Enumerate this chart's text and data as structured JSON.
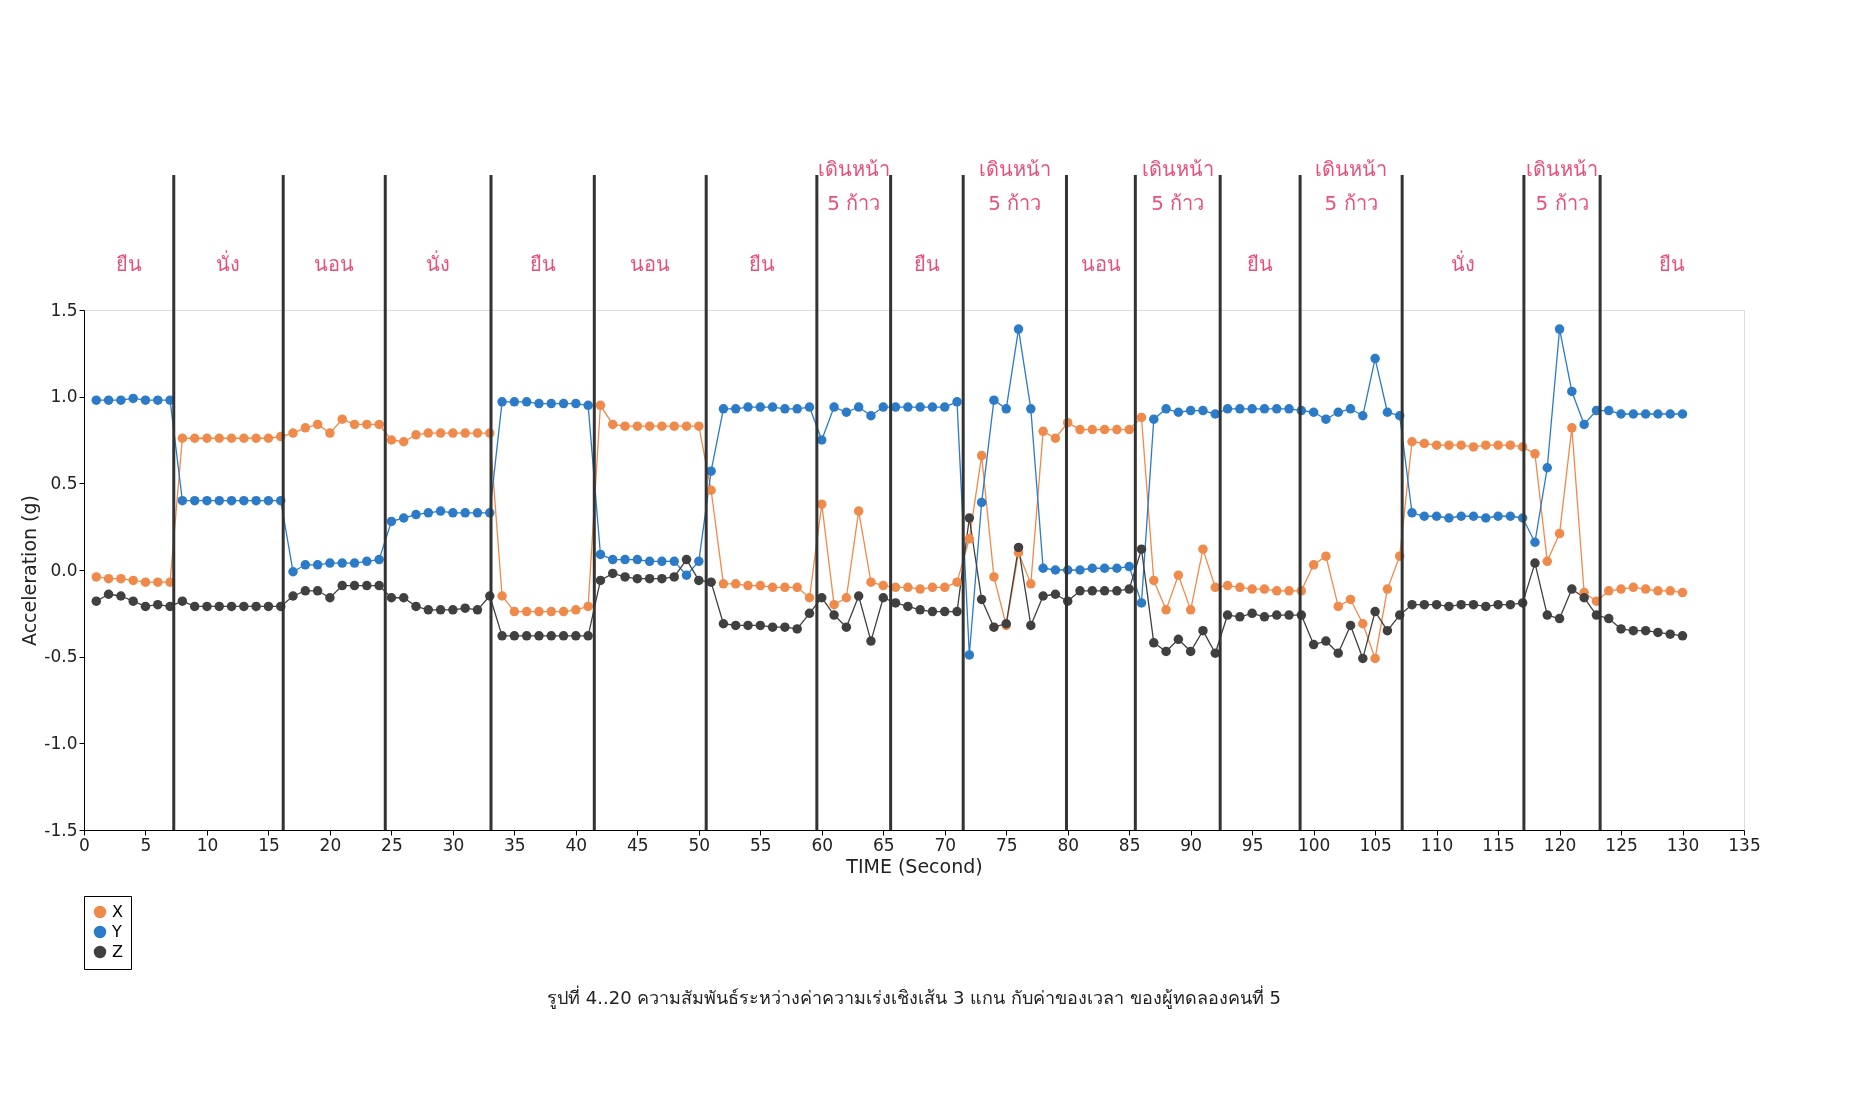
{
  "chart_data": {
    "type": "line",
    "title": "รูปที่ 4..20 ความสัมพันธ์ระหว่างค่าความเร่งเชิงเส้น 3 แกน กับค่าของเวลา ของผู้ทดลองคนที่ 5",
    "xlabel": "TIME (Second)",
    "ylabel": "Acceleration (g)",
    "x": [
      1,
      2,
      3,
      4,
      5,
      6,
      7,
      8,
      9,
      10,
      11,
      12,
      13,
      14,
      15,
      16,
      17,
      18,
      19,
      20,
      21,
      22,
      23,
      24,
      25,
      26,
      27,
      28,
      29,
      30,
      31,
      32,
      33,
      34,
      35,
      36,
      37,
      38,
      39,
      40,
      41,
      42,
      43,
      44,
      45,
      46,
      47,
      48,
      49,
      50,
      51,
      52,
      53,
      54,
      55,
      56,
      57,
      58,
      59,
      60,
      61,
      62,
      63,
      64,
      65,
      66,
      67,
      68,
      69,
      70,
      71,
      72,
      73,
      74,
      75,
      76,
      77,
      78,
      79,
      80,
      81,
      82,
      83,
      84,
      85,
      86,
      87,
      88,
      89,
      90,
      91,
      92,
      93,
      94,
      95,
      96,
      97,
      98,
      99,
      100,
      101,
      102,
      103,
      104,
      105,
      106,
      107,
      108,
      109,
      110,
      111,
      112,
      113,
      114,
      115,
      116,
      117,
      118,
      119,
      120,
      121,
      122,
      123,
      124,
      125,
      126,
      127,
      128,
      129,
      130
    ],
    "series": [
      {
        "name": "X",
        "color": "#f08a4b",
        "values": [
          -0.04,
          -0.05,
          -0.05,
          -0.06,
          -0.07,
          -0.07,
          -0.07,
          0.76,
          0.76,
          0.76,
          0.76,
          0.76,
          0.76,
          0.76,
          0.76,
          0.77,
          0.79,
          0.82,
          0.84,
          0.79,
          0.87,
          0.84,
          0.84,
          0.84,
          0.75,
          0.74,
          0.78,
          0.79,
          0.79,
          0.79,
          0.79,
          0.79,
          0.79,
          -0.15,
          -0.24,
          -0.24,
          -0.24,
          -0.24,
          -0.24,
          -0.23,
          -0.21,
          0.95,
          0.84,
          0.83,
          0.83,
          0.83,
          0.83,
          0.83,
          0.83,
          0.83,
          0.46,
          -0.08,
          -0.08,
          -0.09,
          -0.09,
          -0.1,
          -0.1,
          -0.1,
          -0.16,
          0.38,
          -0.2,
          -0.16,
          0.34,
          -0.07,
          -0.09,
          -0.1,
          -0.1,
          -0.11,
          -0.1,
          -0.1,
          -0.07,
          0.18,
          0.66,
          -0.04,
          -0.32,
          0.1,
          -0.08,
          0.8,
          0.76,
          0.85,
          0.81,
          0.81,
          0.81,
          0.81,
          0.81,
          0.88,
          -0.06,
          -0.23,
          -0.03,
          -0.23,
          0.12,
          -0.1,
          -0.09,
          -0.1,
          -0.11,
          -0.11,
          -0.12,
          -0.12,
          -0.12,
          0.03,
          0.08,
          -0.21,
          -0.17,
          -0.31,
          -0.51,
          -0.11,
          0.08,
          0.74,
          0.73,
          0.72,
          0.72,
          0.72,
          0.71,
          0.72,
          0.72,
          0.72,
          0.71,
          0.67,
          0.05,
          0.21,
          0.82,
          -0.13,
          -0.18,
          -0.12,
          -0.11,
          -0.1,
          -0.11,
          -0.12,
          -0.12,
          -0.13
        ]
      },
      {
        "name": "Y",
        "color": "#2b7bc8",
        "values": [
          0.98,
          0.98,
          0.98,
          0.99,
          0.98,
          0.98,
          0.98,
          0.4,
          0.4,
          0.4,
          0.4,
          0.4,
          0.4,
          0.4,
          0.4,
          0.4,
          -0.01,
          0.03,
          0.03,
          0.04,
          0.04,
          0.04,
          0.05,
          0.06,
          0.28,
          0.3,
          0.32,
          0.33,
          0.34,
          0.33,
          0.33,
          0.33,
          0.33,
          0.97,
          0.97,
          0.97,
          0.96,
          0.96,
          0.96,
          0.96,
          0.95,
          0.09,
          0.06,
          0.06,
          0.06,
          0.05,
          0.05,
          0.05,
          -0.03,
          0.05,
          0.57,
          0.93,
          0.93,
          0.94,
          0.94,
          0.94,
          0.93,
          0.93,
          0.94,
          0.75,
          0.94,
          0.91,
          0.94,
          0.89,
          0.94,
          0.94,
          0.94,
          0.94,
          0.94,
          0.94,
          0.97,
          -0.49,
          0.39,
          0.98,
          0.93,
          1.39,
          0.93,
          0.01,
          0.0,
          0.0,
          0.0,
          0.01,
          0.01,
          0.01,
          0.02,
          -0.19,
          0.87,
          0.93,
          0.91,
          0.92,
          0.92,
          0.9,
          0.93,
          0.93,
          0.93,
          0.93,
          0.93,
          0.93,
          0.92,
          0.91,
          0.87,
          0.91,
          0.93,
          0.89,
          1.22,
          0.91,
          0.89,
          0.33,
          0.31,
          0.31,
          0.3,
          0.31,
          0.31,
          0.3,
          0.31,
          0.31,
          0.3,
          0.16,
          0.59,
          1.39,
          1.03,
          0.84,
          0.92,
          0.92,
          0.9,
          0.9,
          0.9,
          0.9,
          0.9,
          0.9
        ]
      },
      {
        "name": "Z",
        "color": "#404040",
        "values": [
          -0.18,
          -0.14,
          -0.15,
          -0.18,
          -0.21,
          -0.2,
          -0.21,
          -0.18,
          -0.21,
          -0.21,
          -0.21,
          -0.21,
          -0.21,
          -0.21,
          -0.21,
          -0.21,
          -0.15,
          -0.12,
          -0.12,
          -0.16,
          -0.09,
          -0.09,
          -0.09,
          -0.09,
          -0.16,
          -0.16,
          -0.21,
          -0.23,
          -0.23,
          -0.23,
          -0.22,
          -0.23,
          -0.15,
          -0.38,
          -0.38,
          -0.38,
          -0.38,
          -0.38,
          -0.38,
          -0.38,
          -0.38,
          -0.06,
          -0.02,
          -0.04,
          -0.05,
          -0.05,
          -0.05,
          -0.04,
          0.06,
          -0.06,
          -0.07,
          -0.31,
          -0.32,
          -0.32,
          -0.32,
          -0.33,
          -0.33,
          -0.34,
          -0.25,
          -0.16,
          -0.26,
          -0.33,
          -0.15,
          -0.41,
          -0.16,
          -0.19,
          -0.21,
          -0.23,
          -0.24,
          -0.24,
          -0.24,
          0.3,
          -0.17,
          -0.33,
          -0.31,
          0.13,
          -0.32,
          -0.15,
          -0.14,
          -0.18,
          -0.12,
          -0.12,
          -0.12,
          -0.12,
          -0.11,
          0.12,
          -0.42,
          -0.47,
          -0.4,
          -0.47,
          -0.35,
          -0.48,
          -0.26,
          -0.27,
          -0.25,
          -0.27,
          -0.26,
          -0.26,
          -0.26,
          -0.43,
          -0.41,
          -0.48,
          -0.32,
          -0.51,
          -0.24,
          -0.35,
          -0.26,
          -0.2,
          -0.2,
          -0.2,
          -0.21,
          -0.2,
          -0.2,
          -0.21,
          -0.2,
          -0.2,
          -0.19,
          0.04,
          -0.26,
          -0.28,
          -0.11,
          -0.16,
          -0.26,
          -0.28,
          -0.34,
          -0.35,
          -0.35,
          -0.36,
          -0.37,
          -0.38
        ]
      }
    ],
    "xlim": [
      0,
      135
    ],
    "xticks": [
      0,
      5,
      10,
      15,
      20,
      25,
      30,
      35,
      40,
      45,
      50,
      55,
      60,
      65,
      70,
      75,
      80,
      85,
      90,
      95,
      100,
      105,
      110,
      115,
      120,
      125,
      130,
      135
    ],
    "ylim": [
      -1.5,
      1.5
    ],
    "yticks": [
      {
        "value": -1.5,
        "label": "-1.5"
      },
      {
        "value": -1,
        "label": "-1.0"
      },
      -0.5,
      {
        "value": 0,
        "label": "0.0"
      },
      0.5,
      {
        "value": 1,
        "label": "1.0"
      },
      1.5
    ],
    "ref_lines": [
      {
        "axis": "x",
        "value": 7.3
      },
      {
        "axis": "x",
        "value": 16.2
      },
      {
        "axis": "x",
        "value": 24.5
      },
      {
        "axis": "x",
        "value": 33.1
      },
      {
        "axis": "x",
        "value": 41.5
      },
      {
        "axis": "x",
        "value": 50.6
      },
      {
        "axis": "x",
        "value": 59.6
      },
      {
        "axis": "x",
        "value": 65.6
      },
      {
        "axis": "x",
        "value": 71.5
      },
      {
        "axis": "x",
        "value": 79.9
      },
      {
        "axis": "x",
        "value": 85.5
      },
      {
        "axis": "x",
        "value": 92.4
      },
      {
        "axis": "x",
        "value": 98.9
      },
      {
        "axis": "x",
        "value": 107.2
      },
      {
        "axis": "x",
        "value": 117.1
      },
      {
        "axis": "x",
        "value": 123.3
      }
    ],
    "annotations": [
      "ยืน",
      "นั่ง",
      "นอน",
      "นั่ง",
      "ยืน",
      "นอน",
      "ยืน",
      "เดินหน้า\n5 ก้าว",
      "ยืน",
      "เดินหน้า\n5 ก้าว",
      "นอน",
      "เดินหน้า\n5 ก้าว",
      "ยืน",
      "เดินหน้า\n5 ก้าว",
      "นั่ง",
      "เดินหน้า\n5 ก้าว",
      "ยืน"
    ],
    "legend": "bottom left",
    "grid": false,
    "marker": "circle",
    "line_style": "solid"
  }
}
